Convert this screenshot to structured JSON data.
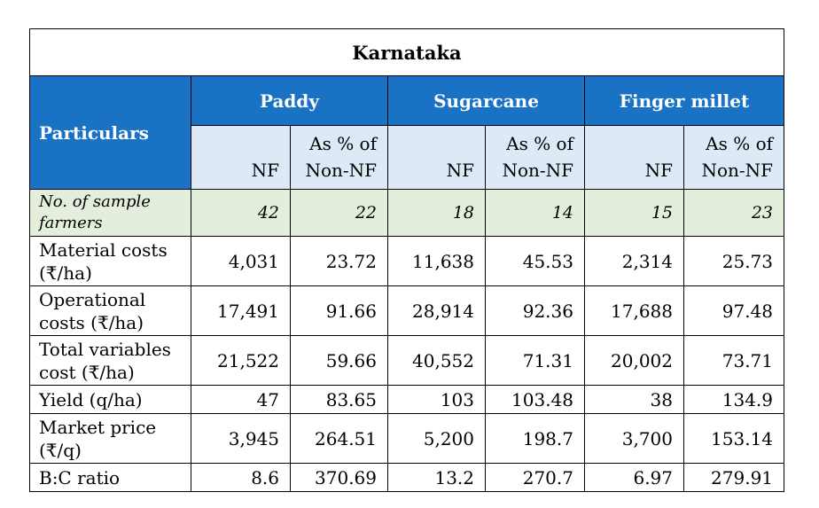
{
  "title": "Karnataka",
  "header": {
    "particulars": "Particulars",
    "crops": [
      "Paddy",
      "Sugarcane",
      "Finger millet"
    ],
    "nf": "NF",
    "pct_line1": "As % of",
    "pct_line2": "Non-NF"
  },
  "sample_row": {
    "label_line1": "No. of sample",
    "label_line2": "farmers",
    "values": [
      "42",
      "22",
      "18",
      "14",
      "15",
      "23"
    ]
  },
  "rows": [
    {
      "label_line1": "Material costs",
      "label_line2": "(₹/ha)",
      "values": [
        "4,031",
        "23.72",
        "11,638",
        "45.53",
        "2,314",
        "25.73"
      ]
    },
    {
      "label_line1": "Operational",
      "label_line2": "costs  (₹/ha)",
      "values": [
        "17,491",
        "91.66",
        "28,914",
        "92.36",
        "17,688",
        "97.48"
      ]
    },
    {
      "label_line1": "Total variables",
      "label_line2": "cost (₹/ha)",
      "values": [
        "21,522",
        "59.66",
        "40,552",
        "71.31",
        "20,002",
        "73.71"
      ]
    },
    {
      "label_line1": "Yield (q/ha)",
      "label_line2": "",
      "values": [
        "47",
        "83.65",
        "103",
        "103.48",
        "38",
        "134.9"
      ]
    },
    {
      "label_line1": "Market price",
      "label_line2": "(₹/q)",
      "values": [
        "3,945",
        "264.51",
        "5,200",
        "198.7",
        "3,700",
        "153.14"
      ]
    },
    {
      "label_line1": "B:C ratio",
      "label_line2": "",
      "values": [
        "8.6",
        "370.69",
        "13.2",
        "270.7",
        "6.97",
        "279.91"
      ]
    }
  ]
}
